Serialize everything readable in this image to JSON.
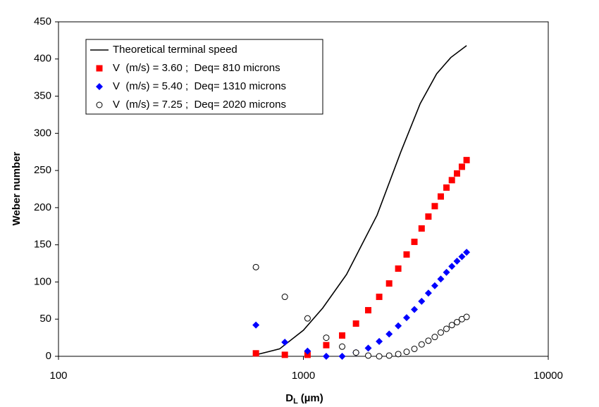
{
  "chart_data": {
    "type": "scatter",
    "y_label": "Weber number",
    "x_label": {
      "main": "D",
      "sub": "L",
      "unit": "(µm)"
    },
    "x_log": true,
    "xlim": [
      100,
      10000
    ],
    "xticks": [
      100,
      1000,
      10000
    ],
    "ylim": [
      0,
      450
    ],
    "yticks": [
      0,
      50,
      100,
      150,
      200,
      250,
      300,
      350,
      400,
      450
    ],
    "grid": false,
    "legend": "top-left",
    "series": [
      {
        "name": "Theoretical terminal speed",
        "kind": "line",
        "color": "#000000",
        "x": [
          640,
          800,
          1000,
          1200,
          1500,
          2000,
          2500,
          3000,
          3500,
          4000,
          4640
        ],
        "values": [
          2,
          10,
          35,
          65,
          110,
          190,
          275,
          340,
          380,
          402,
          418
        ]
      },
      {
        "name": "V  (m/s) = 3.60 ;  Deq= 810 microns",
        "kind": "square",
        "color": "#ff0000",
        "x": [
          640,
          840,
          1040,
          1240,
          1440,
          1640,
          1840,
          2040,
          2240,
          2440,
          2640,
          2840,
          3040,
          3240,
          3440,
          3640,
          3840,
          4040,
          4240,
          4440,
          4640
        ],
        "values": [
          4,
          2,
          2,
          15,
          28,
          44,
          62,
          80,
          98,
          118,
          137,
          154,
          172,
          188,
          202,
          215,
          227,
          237,
          246,
          255,
          264
        ]
      },
      {
        "name": "V  (m/s) = 5.40 ;  Deq= 1310 microns",
        "kind": "diamond",
        "color": "#0000ff",
        "x": [
          640,
          840,
          1040,
          1240,
          1440,
          1640,
          1840,
          2040,
          2240,
          2440,
          2640,
          2840,
          3040,
          3240,
          3440,
          3640,
          3840,
          4040,
          4240,
          4440,
          4640
        ],
        "values": [
          42,
          19,
          7,
          0,
          0,
          5,
          11,
          20,
          30,
          41,
          52,
          63,
          74,
          85,
          95,
          104,
          113,
          121,
          128,
          134,
          140
        ]
      },
      {
        "name": "V  (m/s) = 7.25 ;  Deq= 2020 microns",
        "kind": "circle",
        "color": "#000000",
        "x": [
          640,
          840,
          1040,
          1240,
          1440,
          1640,
          1840,
          2040,
          2240,
          2440,
          2640,
          2840,
          3040,
          3240,
          3440,
          3640,
          3840,
          4040,
          4240,
          4440,
          4640
        ],
        "values": [
          120,
          80,
          51,
          25,
          13,
          5,
          1,
          0,
          1,
          3,
          6,
          10,
          16,
          21,
          26,
          32,
          37,
          42,
          46,
          50,
          53
        ]
      }
    ]
  }
}
